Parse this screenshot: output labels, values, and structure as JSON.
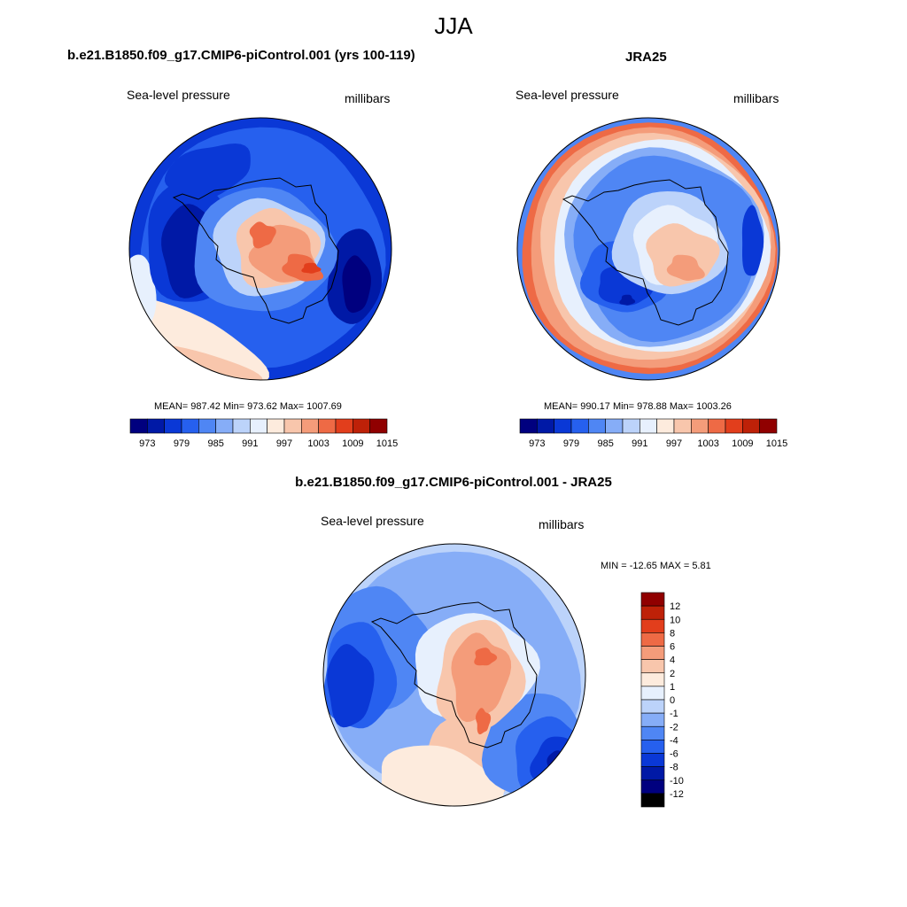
{
  "page": {
    "title": "JJA"
  },
  "colors": {
    "palette": [
      "#00007F",
      "#0019A6",
      "#0A38D6",
      "#2660EE",
      "#4F86F4",
      "#86ADF7",
      "#BCD3FA",
      "#E7F0FD",
      "#FDEBDD",
      "#F8C6AC",
      "#F49C7A",
      "#EE6A45",
      "#E23E1C",
      "#BE2108",
      "#900000"
    ]
  },
  "chart_data": [
    {
      "type": "heatmap",
      "projection": "south-polar-stereographic",
      "title": "b.e21.B1850.f09_g17.CMIP6-piControl.001 (yrs 100-119)",
      "variable_label": "Sea-level pressure",
      "units_label": "millibars",
      "stats": {
        "text": "MEAN= 987.42  Min= 973.62  Max= 1007.69",
        "mean": 987.42,
        "min": 973.62,
        "max": 1007.69
      },
      "colorbar": {
        "orientation": "horizontal",
        "levels": [
          970,
          973,
          976,
          979,
          982,
          985,
          988,
          991,
          994,
          997,
          1000,
          1003,
          1006,
          1009,
          1012,
          1015
        ],
        "tick_labels": [
          "973",
          "979",
          "985",
          "991",
          "997",
          "1003",
          "1009",
          "1015"
        ]
      }
    },
    {
      "type": "heatmap",
      "projection": "south-polar-stereographic",
      "title": "JRA25",
      "variable_label": "Sea-level pressure",
      "units_label": "millibars",
      "stats": {
        "text": "MEAN= 990.17  Min= 978.88  Max= 1003.26",
        "mean": 990.17,
        "min": 978.88,
        "max": 1003.26
      },
      "colorbar": {
        "orientation": "horizontal",
        "levels": [
          970,
          973,
          976,
          979,
          982,
          985,
          988,
          991,
          994,
          997,
          1000,
          1003,
          1006,
          1009,
          1012,
          1015
        ],
        "tick_labels": [
          "973",
          "979",
          "985",
          "991",
          "997",
          "1003",
          "1009",
          "1015"
        ]
      }
    },
    {
      "type": "heatmap",
      "projection": "south-polar-stereographic",
      "title": "b.e21.B1850.f09_g17.CMIP6-piControl.001 - JRA25",
      "variable_label": "Sea-level pressure",
      "units_label": "millibars",
      "stats": {
        "text": "MIN = -12.65 MAX =   5.81",
        "min": -12.65,
        "max": 5.81
      },
      "colorbar": {
        "orientation": "vertical",
        "levels": [
          -14,
          -12,
          -10,
          -8,
          -6,
          -4,
          -2,
          -1,
          0,
          1,
          2,
          4,
          6,
          8,
          10,
          12,
          14
        ],
        "tick_labels": [
          "12",
          "10",
          "8",
          "6",
          "4",
          "2",
          "1",
          "0",
          "-1",
          "-2",
          "-4",
          "-6",
          "-8",
          "-10",
          "-12"
        ]
      }
    }
  ]
}
